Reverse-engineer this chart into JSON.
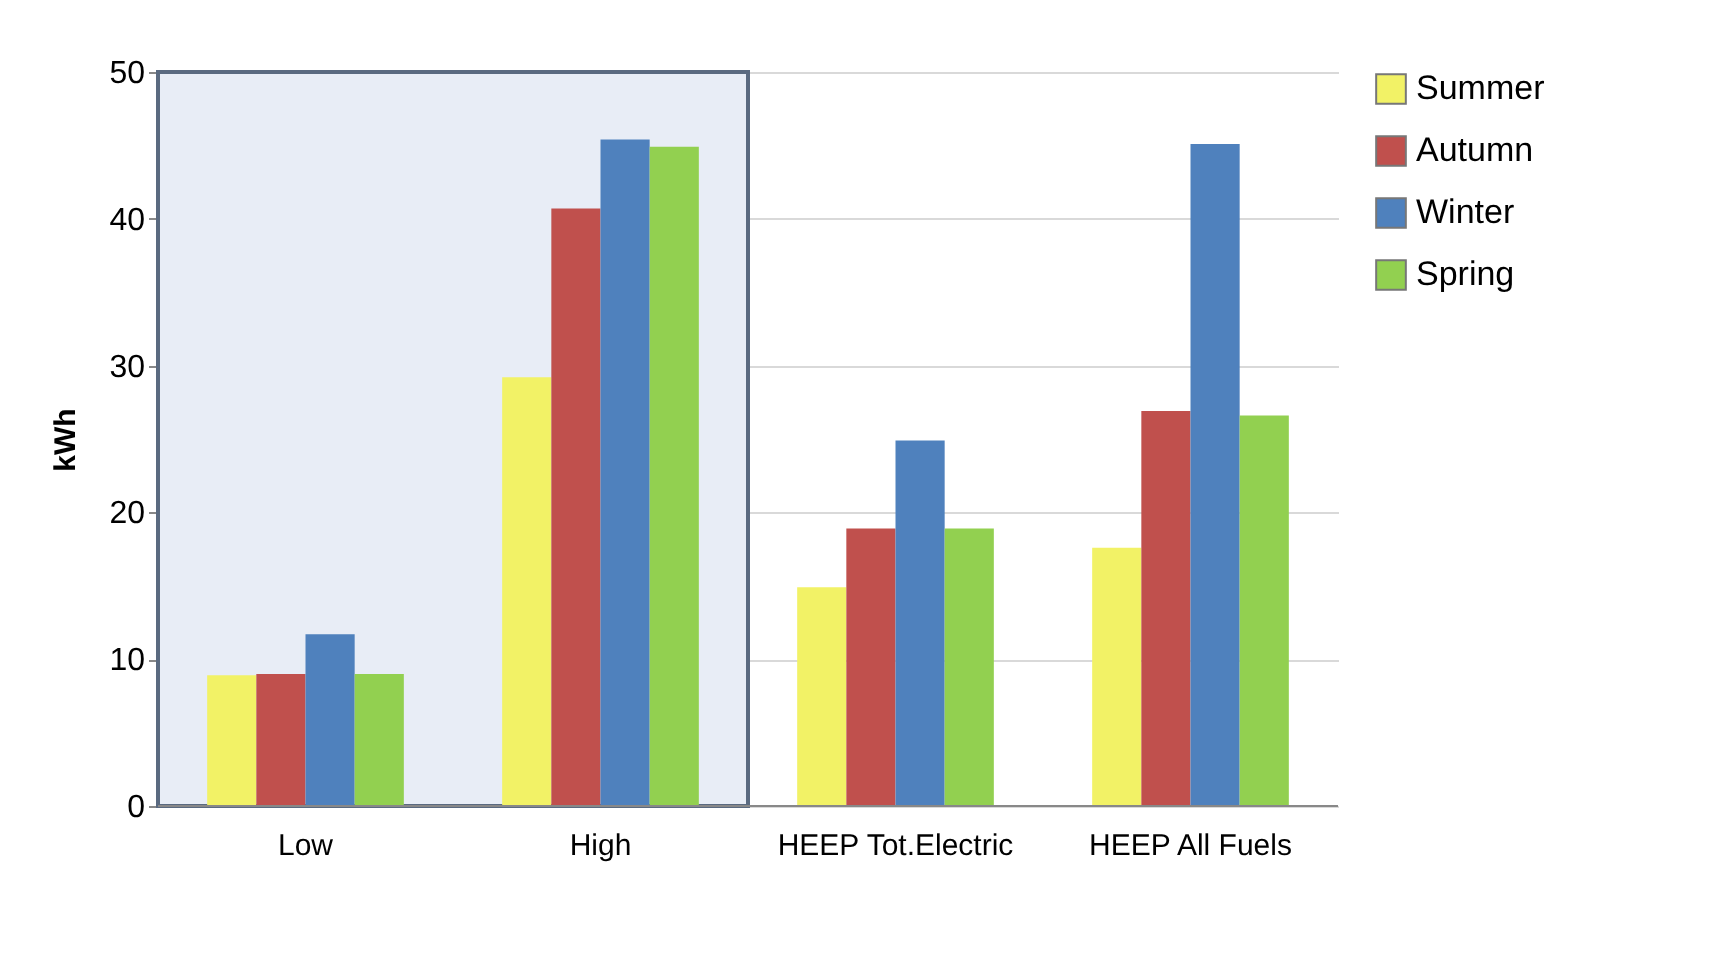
{
  "chart_data": {
    "type": "bar",
    "ylabel": "kWh",
    "categories": [
      "Low",
      "High",
      "HEEP Tot.Electric",
      "HEEP  All Fuels"
    ],
    "series": [
      {
        "name": "Summer",
        "color": "#f2f266",
        "values": [
          8.9,
          29.2,
          14.9,
          17.6
        ]
      },
      {
        "name": "Autumn",
        "color": "#c0504d",
        "values": [
          9.0,
          40.7,
          18.9,
          26.9
        ]
      },
      {
        "name": "Winter",
        "color": "#4f81bd",
        "values": [
          11.7,
          45.4,
          24.9,
          45.1
        ]
      },
      {
        "name": "Spring",
        "color": "#92d050",
        "values": [
          9.0,
          44.9,
          18.9,
          26.6
        ]
      }
    ],
    "ylim": [
      0,
      50
    ],
    "yticks": [
      0,
      10,
      20,
      30,
      40,
      50
    ],
    "grid": "y",
    "legend": "right",
    "bands": [
      {
        "axis": "x",
        "from": "Low",
        "to": "High",
        "color": "#e8edf6"
      }
    ]
  }
}
